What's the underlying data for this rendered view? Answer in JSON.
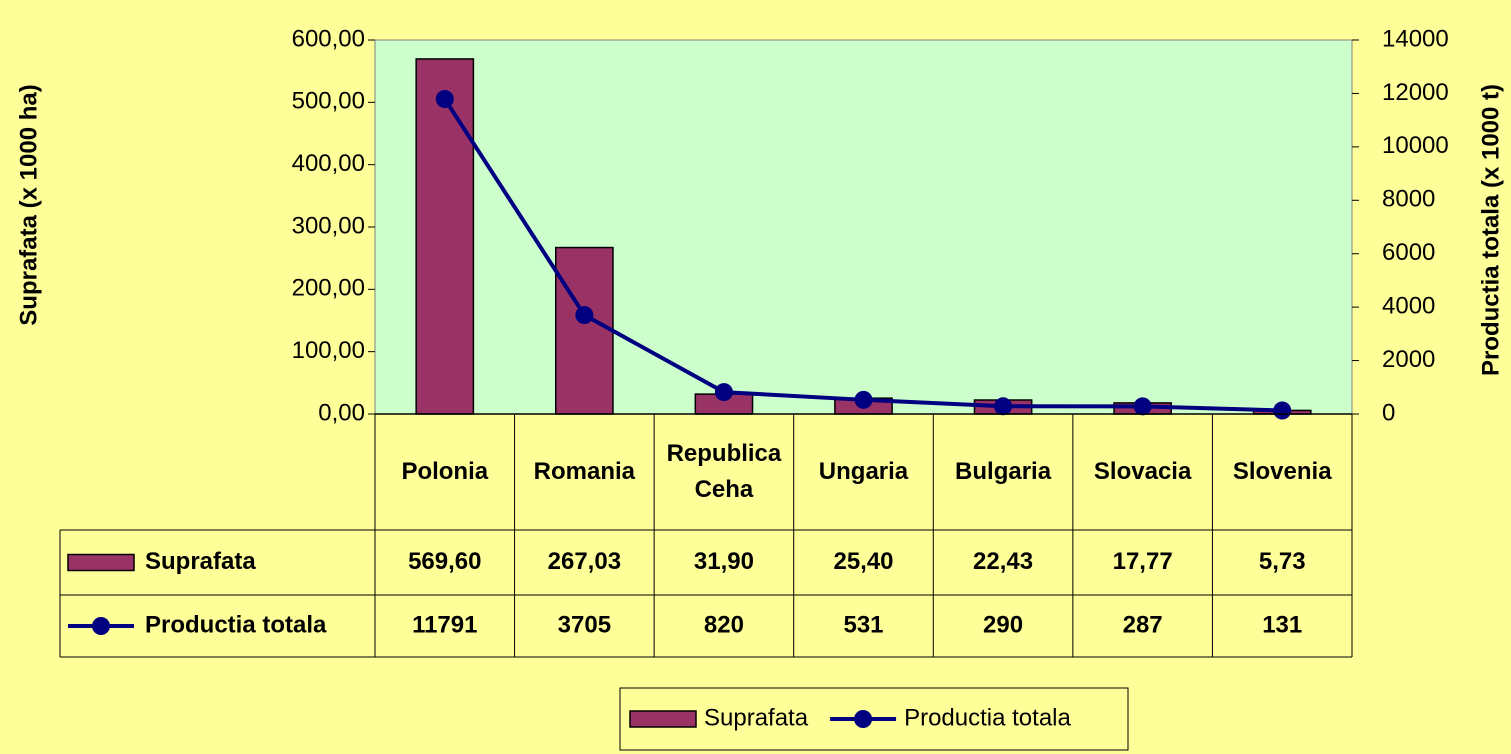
{
  "chart_data": {
    "type": "bar",
    "categories": [
      "Polonia",
      "Romania",
      "Republica Ceha",
      "Ungaria",
      "Bulgaria",
      "Slovacia",
      "Slovenia"
    ],
    "series": [
      {
        "name": "Suprafata",
        "type": "bar",
        "color": "#993366",
        "axis": "y",
        "values": [
          569.6,
          267.03,
          31.9,
          25.4,
          22.43,
          17.77,
          5.73
        ],
        "value_labels": [
          "569,60",
          "267,03",
          "31,90",
          "25,40",
          "22,43",
          "17,77",
          "5,73"
        ]
      },
      {
        "name": "Productia totala",
        "type": "line",
        "color": "#000080",
        "axis": "y2",
        "values": [
          11791,
          3705,
          820,
          531,
          290,
          287,
          131
        ]
      }
    ],
    "ylabel": "Suprafata  (x 1000 ha)",
    "y2label": "Productia totala  (x 1000 t)",
    "ylim": [
      0,
      600
    ],
    "yticks": [
      {
        "value": 0,
        "label": "0,00"
      },
      {
        "value": 100,
        "label": "100,00"
      },
      {
        "value": 200,
        "label": "200,00"
      },
      {
        "value": 300,
        "label": "300,00"
      },
      {
        "value": 400,
        "label": "400,00"
      },
      {
        "value": 500,
        "label": "500,00"
      },
      {
        "value": 600,
        "label": "600,00"
      }
    ],
    "y2lim": [
      0,
      14000
    ],
    "y2ticks": [
      0,
      2000,
      4000,
      6000,
      8000,
      10000,
      12000,
      14000
    ],
    "legend": "bottom",
    "grid": false
  }
}
